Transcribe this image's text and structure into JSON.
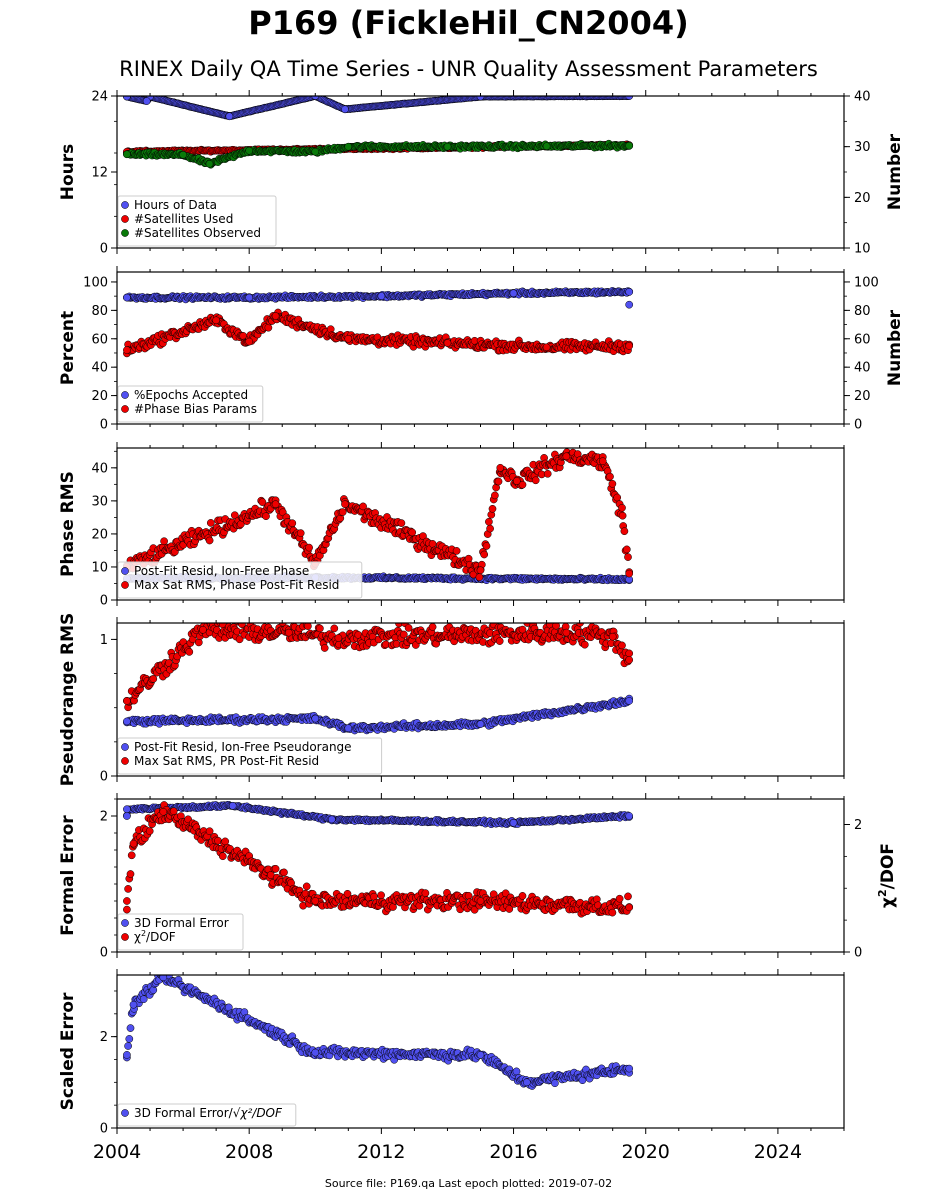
{
  "title": "P169 (FickleHil_CN2004)",
  "subtitle": "RINEX Daily QA Time Series - UNR Quality Assessment Parameters",
  "source": "Source file: P169.qa Last epoch plotted: 2019-07-02",
  "colors": {
    "blue": "#5050f0",
    "red": "#ee0000",
    "green": "#0a7a0a",
    "edge": "#000000"
  },
  "chart_data": [
    {
      "type": "scatter",
      "ylabel": "Hours",
      "ylabel_right": "Number",
      "ylim": [
        0,
        24
      ],
      "yticks": [
        0,
        12,
        24
      ],
      "ylim_right": [
        10,
        40
      ],
      "yticks_right": [
        10,
        20,
        30,
        40
      ],
      "xlim": [
        2004.0,
        2026.0
      ],
      "legend_position": "lower-left",
      "series": [
        {
          "name": "Hours of Data",
          "color": "blue",
          "axis": "left",
          "x_range": [
            2004.3,
            2019.5
          ],
          "values": [
            [
              2004.3,
              23.9
            ],
            [
              2005.0,
              23.9
            ],
            [
              2010.0,
              24.0
            ],
            [
              2015.0,
              23.9
            ],
            [
              2019.5,
              24.0
            ],
            [
              2004.9,
              23.2
            ],
            [
              2007.4,
              20.8
            ],
            [
              2010.9,
              21.9
            ]
          ]
        },
        {
          "name": "#Satellites Used",
          "color": "red",
          "axis": "right",
          "x_range": [
            2004.3,
            2019.5
          ],
          "values": [
            [
              2004.3,
              29.0
            ],
            [
              2019.5,
              30.3
            ]
          ]
        },
        {
          "name": "#Satellites Observed",
          "color": "green",
          "axis": "right",
          "x_range": [
            2004.3,
            2019.5
          ],
          "values": [
            [
              2004.3,
              28.5
            ],
            [
              2006.0,
              28.4
            ],
            [
              2008.0,
              29.2
            ],
            [
              2010.0,
              29.0
            ],
            [
              2011.0,
              30.0
            ],
            [
              2014.0,
              30.0
            ],
            [
              2017.0,
              30.1
            ],
            [
              2019.5,
              30.2
            ],
            [
              2006.8,
              26.6
            ]
          ]
        }
      ]
    },
    {
      "type": "scatter",
      "ylabel": "Percent",
      "ylabel_right": "Number",
      "ylim": [
        0,
        107
      ],
      "yticks": [
        0,
        20,
        40,
        60,
        80,
        100
      ],
      "ylim_right": [
        0,
        107
      ],
      "yticks_right": [
        0,
        20,
        40,
        60,
        80,
        100
      ],
      "xlim": [
        2004.0,
        2026.0
      ],
      "legend_position": "lower-left",
      "series": [
        {
          "name": "%Epochs Accepted",
          "color": "blue",
          "axis": "left",
          "x_range": [
            2004.3,
            2019.5
          ],
          "values": [
            [
              2004.3,
              89
            ],
            [
              2008.0,
              89
            ],
            [
              2012.0,
              90
            ],
            [
              2016.0,
              92
            ],
            [
              2019.5,
              93
            ],
            [
              2019.5,
              84
            ]
          ]
        },
        {
          "name": "#Phase Bias Params",
          "color": "red",
          "axis": "right",
          "x_range": [
            2004.3,
            2019.5
          ],
          "values": [
            [
              2004.3,
              52
            ],
            [
              2008.0,
              58
            ],
            [
              2011.0,
              60
            ],
            [
              2014.0,
              57
            ],
            [
              2017.0,
              54
            ],
            [
              2019.5,
              55
            ],
            [
              2008.8,
              76
            ],
            [
              2007.0,
              73
            ]
          ]
        }
      ]
    },
    {
      "type": "scatter",
      "ylabel": "Phase RMS",
      "ylim": [
        0,
        46
      ],
      "yticks": [
        0,
        10,
        20,
        30,
        40
      ],
      "xlim": [
        2004.0,
        2026.0
      ],
      "legend_position": "lower-left",
      "series": [
        {
          "name": "Post-Fit Resid, Ion-Free Phase",
          "color": "blue",
          "axis": "left",
          "x_range": [
            2004.3,
            2019.5
          ],
          "values": [
            [
              2004.3,
              6.5
            ],
            [
              2010.0,
              6.8
            ],
            [
              2015.0,
              6.5
            ],
            [
              2019.5,
              6.2
            ]
          ]
        },
        {
          "name": "Max Sat RMS, Phase Post-Fit Resid",
          "color": "red",
          "axis": "left",
          "x_range": [
            2004.3,
            2019.5
          ],
          "values": [
            [
              2004.3,
              10
            ],
            [
              2010.0,
              11
            ],
            [
              2015.0,
              9
            ],
            [
              2019.5,
              8
            ],
            [
              2015.6,
              40
            ],
            [
              2016.1,
              36
            ],
            [
              2017.6,
              43.5
            ],
            [
              2018.7,
              42
            ],
            [
              2019.3,
              25.5
            ],
            [
              2010.9,
              29
            ],
            [
              2008.8,
              29
            ]
          ]
        }
      ]
    },
    {
      "type": "scatter",
      "ylabel": "Pseudorange RMS",
      "ylim": [
        0,
        1.12
      ],
      "yticks": [
        0,
        1
      ],
      "xlim": [
        2004.0,
        2026.0
      ],
      "legend_position": "lower-left",
      "series": [
        {
          "name": "Post-Fit Resid, Ion-Free Pseudorange",
          "color": "blue",
          "axis": "left",
          "x_range": [
            2004.3,
            2019.5
          ],
          "values": [
            [
              2004.3,
              0.4
            ],
            [
              2010.0,
              0.42
            ],
            [
              2011.0,
              0.35
            ],
            [
              2015.0,
              0.38
            ],
            [
              2019.5,
              0.55
            ]
          ]
        },
        {
          "name": "Max Sat RMS, PR Post-Fit Resid",
          "color": "red",
          "axis": "left",
          "x_range": [
            2004.3,
            2019.5
          ],
          "values": [
            [
              2004.3,
              0.55
            ],
            [
              2006.6,
              1.07
            ],
            [
              2009.2,
              1.05
            ],
            [
              2010.7,
              1.01
            ],
            [
              2017.6,
              1.05
            ],
            [
              2019.0,
              1.02
            ],
            [
              2019.5,
              0.85
            ]
          ]
        }
      ]
    },
    {
      "type": "scatter",
      "ylabel": "Formal Error",
      "ylabel_right": "χ²/DOF",
      "ylim": [
        0,
        2.25
      ],
      "yticks": [
        0,
        2
      ],
      "ylim_right": [
        0,
        2.4
      ],
      "yticks_right": [
        0,
        2
      ],
      "xlim": [
        2004.0,
        2026.0
      ],
      "legend_position": "lower-left",
      "series": [
        {
          "name": "3D Formal Error",
          "color": "blue",
          "axis": "left",
          "x_range": [
            2004.3,
            2019.5
          ],
          "values": [
            [
              2004.3,
              2.0
            ],
            [
              2010.5,
              1.95
            ],
            [
              2016.0,
              1.9
            ],
            [
              2019.5,
              2.0
            ],
            [
              2004.3,
              2.1
            ],
            [
              2007.5,
              2.15
            ]
          ]
        },
        {
          "name": "χ²/DOF",
          "color": "red",
          "axis": "right",
          "x_range": [
            2004.3,
            2019.5
          ],
          "values": [
            [
              2004.3,
              0.8
            ],
            [
              2010.0,
              0.8
            ],
            [
              2015.0,
              0.8
            ],
            [
              2019.5,
              0.7
            ],
            [
              2004.5,
              1.7
            ],
            [
              2005.4,
              2.2
            ]
          ]
        }
      ]
    },
    {
      "type": "scatter",
      "ylabel": "Scaled Error",
      "ylim": [
        0,
        3.35
      ],
      "yticks": [
        0,
        2
      ],
      "xlim": [
        2004.0,
        2026.0
      ],
      "xticks": [
        2004,
        2008,
        2012,
        2016,
        2020,
        2024
      ],
      "legend_position": "lower-left",
      "series": [
        {
          "name": "3D Formal Error/",
          "name_suffix": "χ²/DOF",
          "color": "blue",
          "axis": "left",
          "x_range": [
            2004.3,
            2019.5
          ],
          "values": [
            [
              2004.3,
              1.6
            ],
            [
              2010.0,
              1.65
            ],
            [
              2015.0,
              1.6
            ],
            [
              2019.5,
              1.3
            ],
            [
              2005.4,
              3.3
            ],
            [
              2004.5,
              2.7
            ],
            [
              2016.4,
              1.0
            ]
          ]
        }
      ]
    }
  ]
}
